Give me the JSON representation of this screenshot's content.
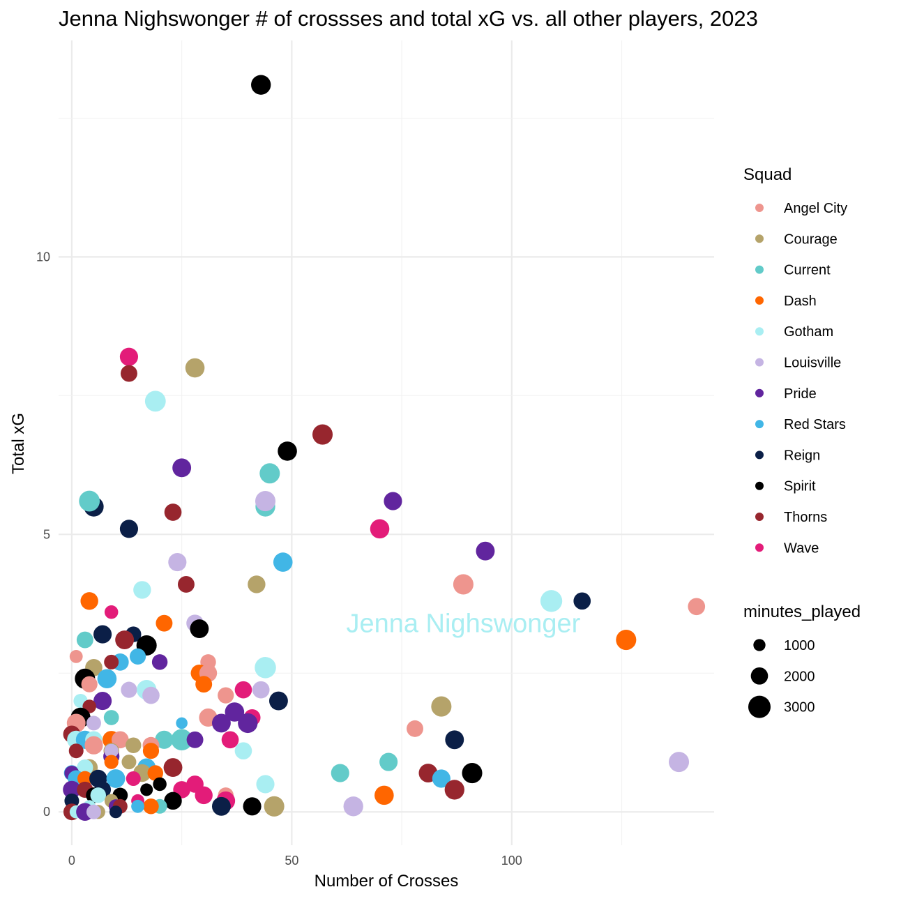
{
  "chart_data": {
    "type": "scatter",
    "title": "Jenna Nighswonger # of crossses and total xG vs. all other players, 2023",
    "xlabel": "Number of Crosses",
    "ylabel": "Total xG",
    "xlim": [
      -3,
      146
    ],
    "ylim": [
      -0.6,
      13.9
    ],
    "x_ticks": [
      0,
      50,
      100
    ],
    "x_tick_labels": [
      "0",
      "50",
      "100"
    ],
    "y_ticks": [
      0,
      5,
      10
    ],
    "y_tick_labels": [
      "0",
      "5",
      "10"
    ],
    "grid": true,
    "legend_position": "right",
    "color_legend": {
      "title": "Squad",
      "items": [
        {
          "name": "Angel City",
          "color": "#EE958E"
        },
        {
          "name": "Courage",
          "color": "#B5A36A"
        },
        {
          "name": "Current",
          "color": "#62CBC9"
        },
        {
          "name": "Dash",
          "color": "#FF6600"
        },
        {
          "name": "Gotham",
          "color": "#A9EEF2"
        },
        {
          "name": "Louisville",
          "color": "#C5B4E3"
        },
        {
          "name": "Pride",
          "color": "#61259E"
        },
        {
          "name": "Red Stars",
          "color": "#41B6E6"
        },
        {
          "name": "Reign",
          "color": "#0B1F47"
        },
        {
          "name": "Spirit",
          "color": "#000000"
        },
        {
          "name": "Thorns",
          "color": "#97262E"
        },
        {
          "name": "Wave",
          "color": "#E31C79"
        }
      ]
    },
    "size_legend": {
      "title": "minutes_played",
      "items": [
        {
          "label": "1000",
          "value": 1000
        },
        {
          "label": "2000",
          "value": 2000
        },
        {
          "label": "3000",
          "value": 3000
        }
      ]
    },
    "annotation": {
      "text": "Jenna Nighswonger",
      "x": 89,
      "y": 3.4,
      "color": "#A9EEF2"
    },
    "points": [
      {
        "squad": "Spirit",
        "x": 43,
        "y": 13.1,
        "m": 2500
      },
      {
        "squad": "Wave",
        "x": 13,
        "y": 8.2,
        "m": 2200
      },
      {
        "squad": "Thorns",
        "x": 13,
        "y": 7.9,
        "m": 1900
      },
      {
        "squad": "Courage",
        "x": 28,
        "y": 8.0,
        "m": 2400
      },
      {
        "squad": "Gotham",
        "x": 19,
        "y": 7.4,
        "m": 2700
      },
      {
        "squad": "Thorns",
        "x": 57,
        "y": 6.8,
        "m": 2600
      },
      {
        "squad": "Spirit",
        "x": 49,
        "y": 6.5,
        "m": 2400
      },
      {
        "squad": "Pride",
        "x": 25,
        "y": 6.2,
        "m": 2300
      },
      {
        "squad": "Current",
        "x": 45,
        "y": 6.1,
        "m": 2600
      },
      {
        "squad": "Reign",
        "x": 5,
        "y": 5.5,
        "m": 2500
      },
      {
        "squad": "Current",
        "x": 4,
        "y": 5.6,
        "m": 2700
      },
      {
        "squad": "Current",
        "x": 44,
        "y": 5.5,
        "m": 2500
      },
      {
        "squad": "Louisville",
        "x": 44,
        "y": 5.6,
        "m": 2600
      },
      {
        "squad": "Pride",
        "x": 73,
        "y": 5.6,
        "m": 2200
      },
      {
        "squad": "Reign",
        "x": 13,
        "y": 5.1,
        "m": 2200
      },
      {
        "squad": "Thorns",
        "x": 23,
        "y": 5.4,
        "m": 2000
      },
      {
        "squad": "Wave",
        "x": 70,
        "y": 5.1,
        "m": 2400
      },
      {
        "squad": "Pride",
        "x": 94,
        "y": 4.7,
        "m": 2300
      },
      {
        "squad": "Louisville",
        "x": 24,
        "y": 4.5,
        "m": 2200
      },
      {
        "squad": "Red Stars",
        "x": 48,
        "y": 4.5,
        "m": 2400
      },
      {
        "squad": "Courage",
        "x": 42,
        "y": 4.1,
        "m": 2100
      },
      {
        "squad": "Thorns",
        "x": 26,
        "y": 4.1,
        "m": 1900
      },
      {
        "squad": "Angel City",
        "x": 89,
        "y": 4.1,
        "m": 2600
      },
      {
        "squad": "Gotham",
        "x": 16,
        "y": 4.0,
        "m": 2100
      },
      {
        "squad": "Dash",
        "x": 4,
        "y": 3.8,
        "m": 2100
      },
      {
        "squad": "Wave",
        "x": 9,
        "y": 3.6,
        "m": 1300
      },
      {
        "squad": "Gotham",
        "x": 109,
        "y": 3.8,
        "m": 2900
      },
      {
        "squad": "Reign",
        "x": 116,
        "y": 3.8,
        "m": 2000
      },
      {
        "squad": "Angel City",
        "x": 142,
        "y": 3.7,
        "m": 2000
      },
      {
        "squad": "Dash",
        "x": 21,
        "y": 3.4,
        "m": 1900
      },
      {
        "squad": "Louisville",
        "x": 28,
        "y": 3.4,
        "m": 2000
      },
      {
        "squad": "Spirit",
        "x": 29,
        "y": 3.3,
        "m": 2300
      },
      {
        "squad": "Reign",
        "x": 7,
        "y": 3.2,
        "m": 2200
      },
      {
        "squad": "Reign",
        "x": 14,
        "y": 3.2,
        "m": 1700
      },
      {
        "squad": "Thorns",
        "x": 12,
        "y": 3.1,
        "m": 2300
      },
      {
        "squad": "Spirit",
        "x": 17,
        "y": 3.0,
        "m": 2600
      },
      {
        "squad": "Current",
        "x": 3,
        "y": 3.1,
        "m": 1900
      },
      {
        "squad": "Dash",
        "x": 126,
        "y": 3.1,
        "m": 2600
      },
      {
        "squad": "Angel City",
        "x": 1,
        "y": 2.8,
        "m": 1200
      },
      {
        "squad": "Red Stars",
        "x": 15,
        "y": 2.8,
        "m": 1800
      },
      {
        "squad": "Red Stars",
        "x": 11,
        "y": 2.7,
        "m": 2000
      },
      {
        "squad": "Pride",
        "x": 20,
        "y": 2.7,
        "m": 1700
      },
      {
        "squad": "Courage",
        "x": 5,
        "y": 2.6,
        "m": 2000
      },
      {
        "squad": "Thorns",
        "x": 9,
        "y": 2.7,
        "m": 1500
      },
      {
        "squad": "Angel City",
        "x": 31,
        "y": 2.7,
        "m": 1700
      },
      {
        "squad": "Dash",
        "x": 29,
        "y": 2.5,
        "m": 2000
      },
      {
        "squad": "Angel City",
        "x": 31,
        "y": 2.5,
        "m": 2100
      },
      {
        "squad": "Gotham",
        "x": 44,
        "y": 2.6,
        "m": 2800
      },
      {
        "squad": "Spirit",
        "x": 3,
        "y": 2.4,
        "m": 2600
      },
      {
        "squad": "Red Stars",
        "x": 8,
        "y": 2.4,
        "m": 2400
      },
      {
        "squad": "Angel City",
        "x": 4,
        "y": 2.3,
        "m": 1800
      },
      {
        "squad": "Dash",
        "x": 30,
        "y": 2.3,
        "m": 1900
      },
      {
        "squad": "Louisville",
        "x": 13,
        "y": 2.2,
        "m": 1800
      },
      {
        "squad": "Gotham",
        "x": 17,
        "y": 2.2,
        "m": 2500
      },
      {
        "squad": "Louisville",
        "x": 18,
        "y": 2.1,
        "m": 2000
      },
      {
        "squad": "Wave",
        "x": 39,
        "y": 2.2,
        "m": 2000
      },
      {
        "squad": "Louisville",
        "x": 43,
        "y": 2.2,
        "m": 2000
      },
      {
        "squad": "Angel City",
        "x": 35,
        "y": 2.1,
        "m": 1800
      },
      {
        "squad": "Pride",
        "x": 7,
        "y": 2.0,
        "m": 2200
      },
      {
        "squad": "Gotham",
        "x": 2,
        "y": 2.0,
        "m": 1400
      },
      {
        "squad": "Thorns",
        "x": 4,
        "y": 1.9,
        "m": 1300
      },
      {
        "squad": "Reign",
        "x": 47,
        "y": 2.0,
        "m": 2300
      },
      {
        "squad": "Courage",
        "x": 84,
        "y": 1.9,
        "m": 2600
      },
      {
        "squad": "Pride",
        "x": 37,
        "y": 1.8,
        "m": 2400
      },
      {
        "squad": "Spirit",
        "x": 2,
        "y": 1.7,
        "m": 2500
      },
      {
        "squad": "Current",
        "x": 9,
        "y": 1.7,
        "m": 1600
      },
      {
        "squad": "Angel City",
        "x": 31,
        "y": 1.7,
        "m": 2200
      },
      {
        "squad": "Wave",
        "x": 41,
        "y": 1.7,
        "m": 1900
      },
      {
        "squad": "Red Stars",
        "x": 25,
        "y": 1.6,
        "m": 900
      },
      {
        "squad": "Pride",
        "x": 34,
        "y": 1.6,
        "m": 2300
      },
      {
        "squad": "Pride",
        "x": 40,
        "y": 1.6,
        "m": 2500
      },
      {
        "squad": "Angel City",
        "x": 1,
        "y": 1.6,
        "m": 2300
      },
      {
        "squad": "Louisville",
        "x": 5,
        "y": 1.6,
        "m": 1500
      },
      {
        "squad": "Angel City",
        "x": 78,
        "y": 1.5,
        "m": 1900
      },
      {
        "squad": "Thorns",
        "x": 0,
        "y": 1.4,
        "m": 2000
      },
      {
        "squad": "Gotham",
        "x": 1,
        "y": 1.3,
        "m": 2200
      },
      {
        "squad": "Red Stars",
        "x": 3,
        "y": 1.3,
        "m": 2200
      },
      {
        "squad": "Gotham",
        "x": 5,
        "y": 1.3,
        "m": 2000
      },
      {
        "squad": "Dash",
        "x": 9,
        "y": 1.3,
        "m": 2100
      },
      {
        "squad": "Angel City",
        "x": 11,
        "y": 1.3,
        "m": 2000
      },
      {
        "squad": "Current",
        "x": 21,
        "y": 1.3,
        "m": 2200
      },
      {
        "squad": "Current",
        "x": 25,
        "y": 1.3,
        "m": 2800
      },
      {
        "squad": "Pride",
        "x": 28,
        "y": 1.3,
        "m": 1900
      },
      {
        "squad": "Wave",
        "x": 36,
        "y": 1.3,
        "m": 2000
      },
      {
        "squad": "Reign",
        "x": 87,
        "y": 1.3,
        "m": 2300
      },
      {
        "squad": "Courage",
        "x": 14,
        "y": 1.2,
        "m": 1700
      },
      {
        "squad": "Angel City",
        "x": 18,
        "y": 1.2,
        "m": 1900
      },
      {
        "squad": "Angel City",
        "x": 5,
        "y": 1.2,
        "m": 2200
      },
      {
        "squad": "Thorns",
        "x": 1,
        "y": 1.1,
        "m": 1500
      },
      {
        "squad": "Courage",
        "x": 9,
        "y": 1.1,
        "m": 1700
      },
      {
        "squad": "Dash",
        "x": 18,
        "y": 1.1,
        "m": 1800
      },
      {
        "squad": "Gotham",
        "x": 39,
        "y": 1.1,
        "m": 2000
      },
      {
        "squad": "Pride",
        "x": 9,
        "y": 1.0,
        "m": 1800
      },
      {
        "squad": "Louisville",
        "x": 9,
        "y": 1.1,
        "m": 1400
      },
      {
        "squad": "Courage",
        "x": 13,
        "y": 0.9,
        "m": 1500
      },
      {
        "squad": "Dash",
        "x": 9,
        "y": 0.9,
        "m": 1400
      },
      {
        "squad": "Current",
        "x": 72,
        "y": 0.9,
        "m": 2200
      },
      {
        "squad": "Louisville",
        "x": 138,
        "y": 0.9,
        "m": 2600
      },
      {
        "squad": "Courage",
        "x": 4,
        "y": 0.8,
        "m": 1900
      },
      {
        "squad": "Red Stars",
        "x": 17,
        "y": 0.8,
        "m": 2200
      },
      {
        "squad": "Thorns",
        "x": 23,
        "y": 0.8,
        "m": 2300
      },
      {
        "squad": "Red Stars",
        "x": 0,
        "y": 0.7,
        "m": 1700
      },
      {
        "squad": "Gotham",
        "x": 3,
        "y": 0.8,
        "m": 1800
      },
      {
        "squad": "Pride",
        "x": 0,
        "y": 0.7,
        "m": 1500
      },
      {
        "squad": "Courage",
        "x": 16,
        "y": 0.7,
        "m": 2100
      },
      {
        "squad": "Dash",
        "x": 19,
        "y": 0.7,
        "m": 1700
      },
      {
        "squad": "Current",
        "x": 61,
        "y": 0.7,
        "m": 2200
      },
      {
        "squad": "Thorns",
        "x": 81,
        "y": 0.7,
        "m": 2300
      },
      {
        "squad": "Spirit",
        "x": 91,
        "y": 0.7,
        "m": 2600
      },
      {
        "squad": "Red Stars",
        "x": 1,
        "y": 0.6,
        "m": 1900
      },
      {
        "squad": "Dash",
        "x": 3,
        "y": 0.6,
        "m": 1600
      },
      {
        "squad": "Reign",
        "x": 6,
        "y": 0.6,
        "m": 2100
      },
      {
        "squad": "Red Stars",
        "x": 10,
        "y": 0.6,
        "m": 2300
      },
      {
        "squad": "Red Stars",
        "x": 84,
        "y": 0.6,
        "m": 2200
      },
      {
        "squad": "Wave",
        "x": 14,
        "y": 0.6,
        "m": 1500
      },
      {
        "squad": "Spirit",
        "x": 20,
        "y": 0.5,
        "m": 1300
      },
      {
        "squad": "Gotham",
        "x": 44,
        "y": 0.5,
        "m": 2200
      },
      {
        "squad": "Pride",
        "x": 0,
        "y": 0.4,
        "m": 2100
      },
      {
        "squad": "Thorns",
        "x": 3,
        "y": 0.4,
        "m": 1800
      },
      {
        "squad": "Reign",
        "x": 7,
        "y": 0.4,
        "m": 1900
      },
      {
        "squad": "Spirit",
        "x": 17,
        "y": 0.4,
        "m": 1100
      },
      {
        "squad": "Wave",
        "x": 25,
        "y": 0.4,
        "m": 2000
      },
      {
        "squad": "Wave",
        "x": 28,
        "y": 0.5,
        "m": 2000
      },
      {
        "squad": "Thorns",
        "x": 87,
        "y": 0.4,
        "m": 2500
      },
      {
        "squad": "Spirit",
        "x": 5,
        "y": 0.3,
        "m": 1700
      },
      {
        "squad": "Spirit",
        "x": 11,
        "y": 0.3,
        "m": 1600
      },
      {
        "squad": "Angel City",
        "x": 35,
        "y": 0.3,
        "m": 1700
      },
      {
        "squad": "Wave",
        "x": 30,
        "y": 0.3,
        "m": 2100
      },
      {
        "squad": "Dash",
        "x": 71,
        "y": 0.3,
        "m": 2400
      },
      {
        "squad": "Reign",
        "x": 0,
        "y": 0.2,
        "m": 1500
      },
      {
        "squad": "Gotham",
        "x": 6,
        "y": 0.3,
        "m": 1700
      },
      {
        "squad": "Courage",
        "x": 9,
        "y": 0.2,
        "m": 1300
      },
      {
        "squad": "Wave",
        "x": 15,
        "y": 0.2,
        "m": 1200
      },
      {
        "squad": "Spirit",
        "x": 23,
        "y": 0.2,
        "m": 2100
      },
      {
        "squad": "Wave",
        "x": 35,
        "y": 0.2,
        "m": 2300
      },
      {
        "squad": "Current",
        "x": 20,
        "y": 0.1,
        "m": 1500
      },
      {
        "squad": "Dash",
        "x": 18,
        "y": 0.1,
        "m": 1700
      },
      {
        "squad": "Pride",
        "x": 10,
        "y": 0.1,
        "m": 1400
      },
      {
        "squad": "Gotham",
        "x": 4,
        "y": 0.1,
        "m": 1100
      },
      {
        "squad": "Thorns",
        "x": 11,
        "y": 0.1,
        "m": 1500
      },
      {
        "squad": "Louisville",
        "x": 64,
        "y": 0.1,
        "m": 2500
      },
      {
        "squad": "Reign",
        "x": 34,
        "y": 0.1,
        "m": 2300
      },
      {
        "squad": "Spirit",
        "x": 41,
        "y": 0.1,
        "m": 2200
      },
      {
        "squad": "Courage",
        "x": 46,
        "y": 0.1,
        "m": 2600
      },
      {
        "squad": "Red Stars",
        "x": 15,
        "y": 0.1,
        "m": 1200
      },
      {
        "squad": "Thorns",
        "x": 0,
        "y": 0.0,
        "m": 1900
      },
      {
        "squad": "Gotham",
        "x": 1,
        "y": 0.0,
        "m": 1200
      },
      {
        "squad": "Pride",
        "x": 3,
        "y": 0.0,
        "m": 2100
      },
      {
        "squad": "Courage",
        "x": 6,
        "y": 0.0,
        "m": 1400
      },
      {
        "squad": "Reign",
        "x": 10,
        "y": 0.0,
        "m": 1100
      },
      {
        "squad": "Louisville",
        "x": 5,
        "y": 0.0,
        "m": 1500
      }
    ]
  }
}
